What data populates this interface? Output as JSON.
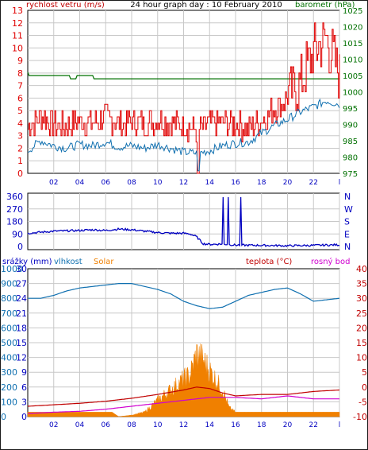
{
  "colors": {
    "red": "#e00000",
    "blue": "#0000c0",
    "teal": "#1070b0",
    "green": "#007000",
    "orange": "#f08000",
    "magenta": "#d000d0",
    "darkred": "#c00000",
    "darkgreen": "#007000",
    "grid": "#c8c8c8",
    "header_red": "#c00000",
    "header_blue": "#0000c0"
  },
  "chart_data": [
    {
      "type": "line",
      "title": "24 hour graph day : 10 February 2010",
      "left_label": "rychlost vetru (m/s)",
      "right_label": "barometr (hPa)",
      "x_ticks": [
        "02",
        "04",
        "06",
        "08",
        "10",
        "12",
        "14",
        "16",
        "18",
        "20",
        "22",
        "l"
      ],
      "y_left_ticks": [
        "13",
        "12",
        "11",
        "10",
        "9",
        "8",
        "7",
        "6",
        "5",
        "4",
        "3",
        "2",
        "1",
        "0"
      ],
      "y_right_ticks": [
        "1025",
        "1020",
        "1015",
        "1010",
        "1005",
        "1000",
        "995",
        "990",
        "985",
        "980",
        "975"
      ],
      "ylim_left": [
        0,
        13
      ],
      "ylim_right": [
        975,
        1025
      ],
      "series": [
        {
          "key": "gust",
          "x": [
            0,
            1,
            2,
            3,
            4,
            5,
            6,
            7,
            8,
            9,
            10,
            11,
            12,
            13,
            14,
            15,
            16,
            17,
            18,
            19,
            20,
            21,
            22,
            23,
            24
          ],
          "values": [
            3.5,
            4.5,
            3.8,
            3.6,
            4.0,
            3.8,
            4.4,
            3.9,
            4.0,
            3.8,
            4.2,
            3.9,
            3.7,
            3.4,
            3.8,
            4.0,
            3.8,
            3.5,
            4.2,
            5.0,
            5.8,
            7.0,
            9.5,
            10.5,
            7.5
          ]
        },
        {
          "key": "speed",
          "x": [
            0,
            1,
            2,
            3,
            4,
            5,
            6,
            7,
            8,
            9,
            10,
            11,
            12,
            13,
            14,
            15,
            16,
            17,
            18,
            19,
            20,
            21,
            22,
            23,
            24
          ],
          "values": [
            1.8,
            2.6,
            2.2,
            2.0,
            2.3,
            2.2,
            2.5,
            2.1,
            2.2,
            2.0,
            2.3,
            2.0,
            1.7,
            1.6,
            1.8,
            2.2,
            2.4,
            2.5,
            3.2,
            3.8,
            4.3,
            4.9,
            5.3,
            5.8,
            5.5
          ]
        },
        {
          "key": "pressure",
          "axis": "right",
          "x": [
            0,
            0.1,
            1,
            3,
            3.5,
            4,
            6,
            8,
            10,
            12,
            14,
            16,
            18,
            20,
            22,
            24
          ],
          "values": [
            1006,
            1005,
            1005,
            1005,
            1004,
            1005,
            1004,
            1004,
            1004,
            1004,
            1004,
            1004,
            1004,
            1004,
            1004,
            1004
          ]
        }
      ]
    },
    {
      "type": "line",
      "left_ticks": [
        "360",
        "270",
        "180",
        "90",
        "0"
      ],
      "right_ticks": [
        "N",
        "W",
        "S",
        "E",
        "N"
      ],
      "ylim": [
        0,
        360
      ],
      "series": [
        {
          "key": "direction",
          "x": [
            0,
            2,
            4,
            5,
            6,
            7,
            8,
            9,
            10,
            11,
            12,
            12.5,
            13,
            13.5,
            14,
            15,
            16,
            18,
            20,
            22,
            24
          ],
          "values": [
            95,
            110,
            115,
            120,
            115,
            125,
            120,
            110,
            100,
            95,
            95,
            90,
            70,
            20,
            15,
            18,
            10,
            8,
            5,
            8,
            12
          ]
        }
      ]
    },
    {
      "type": "area",
      "labels": {
        "rain": "srážky (mm)",
        "humidity": "vlhkost",
        "solar": "Solar",
        "temperature": "teplota (°C)",
        "dewpoint": "rosný bod"
      },
      "y_solar_ticks": [
        "1000",
        "900",
        "800",
        "700",
        "600",
        "500",
        "400",
        "300",
        "200",
        "100",
        "0"
      ],
      "y_rain_ticks": [
        "30",
        "27",
        "24",
        "21",
        "18",
        "15",
        "12",
        "9",
        "6",
        "3",
        "0"
      ],
      "y_temp_ticks": [
        "40",
        "35",
        "30",
        "25",
        "20",
        "15",
        "10",
        "5",
        "0",
        "-5",
        "-10"
      ],
      "series": [
        {
          "key": "humidity",
          "x": [
            0,
            1,
            2,
            3,
            4,
            5,
            6,
            7,
            8,
            9,
            10,
            11,
            12,
            13,
            14,
            15,
            16,
            17,
            18,
            19,
            20,
            21,
            22,
            23,
            24
          ],
          "values": [
            80,
            80,
            82,
            85,
            87,
            88,
            89,
            90,
            90,
            88,
            86,
            83,
            78,
            75,
            73,
            74,
            78,
            82,
            84,
            86,
            87,
            83,
            78,
            79,
            80
          ]
        },
        {
          "key": "temperature",
          "x": [
            0,
            2,
            4,
            6,
            8,
            10,
            12,
            13,
            14,
            15,
            16,
            18,
            20,
            22,
            24
          ],
          "values": [
            -6.5,
            -6.0,
            -5.5,
            -4.8,
            -3.8,
            -2.5,
            -1.0,
            0.0,
            -0.5,
            -2.0,
            -3.0,
            -2.5,
            -2.5,
            -1.5,
            -1.0
          ]
        },
        {
          "key": "dewpoint",
          "x": [
            0,
            2,
            4,
            6,
            8,
            10,
            12,
            13,
            14,
            16,
            18,
            20,
            22,
            24
          ],
          "values": [
            -9.0,
            -8.5,
            -8.2,
            -7.5,
            -6.5,
            -5.5,
            -4.5,
            -4.0,
            -3.5,
            -3.5,
            -4.0,
            -3.0,
            -4.0,
            -4.0
          ]
        },
        {
          "key": "solar",
          "x": [
            0,
            6.5,
            7,
            8,
            9,
            10,
            11,
            12,
            12.5,
            13,
            13.5,
            14,
            15,
            15.5,
            16,
            24
          ],
          "values": [
            30,
            30,
            0,
            10,
            30,
            110,
            180,
            250,
            280,
            420,
            380,
            310,
            180,
            60,
            30,
            30
          ]
        }
      ]
    }
  ]
}
